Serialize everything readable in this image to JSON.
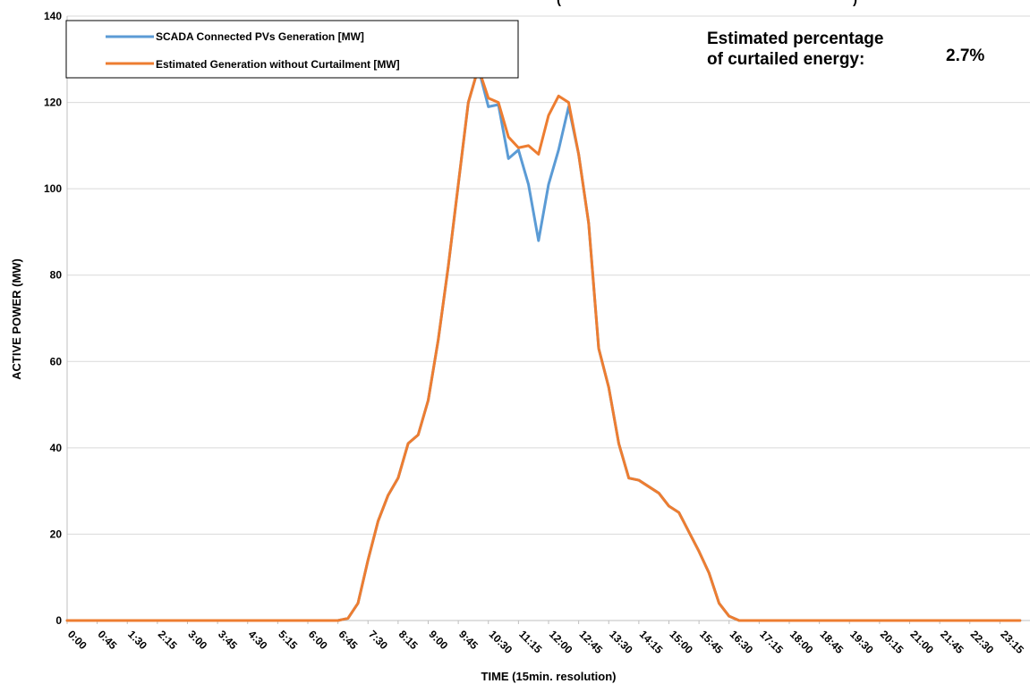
{
  "chart_data": {
    "type": "line",
    "title_visible_fragment": "(",
    "title_visible_fragment_right": ")",
    "xlabel": "TIME (15min. resolution)",
    "ylabel": "ACTIVE POWER (MW)",
    "ylim": [
      0,
      140
    ],
    "yticks": [
      0,
      20,
      40,
      60,
      80,
      100,
      120,
      140
    ],
    "xtick_labels": [
      "0:00",
      "0:45",
      "1:30",
      "2:15",
      "3:00",
      "3:45",
      "4:30",
      "5:15",
      "6:00",
      "6:45",
      "7:30",
      "8:15",
      "9:00",
      "9:45",
      "10:30",
      "11:15",
      "12:00",
      "12:45",
      "13:30",
      "14:15",
      "15:00",
      "15:45",
      "16:30",
      "17:15",
      "18:00",
      "18:45",
      "19:30",
      "20:15",
      "21:00",
      "21:45",
      "22:30",
      "23:15"
    ],
    "grid": "horizontal",
    "legend_placement": "top-left",
    "x": [
      "0:00",
      "0:15",
      "0:30",
      "0:45",
      "1:00",
      "1:15",
      "1:30",
      "1:45",
      "2:00",
      "2:15",
      "2:30",
      "2:45",
      "3:00",
      "3:15",
      "3:30",
      "3:45",
      "4:00",
      "4:15",
      "4:30",
      "4:45",
      "5:00",
      "5:15",
      "5:30",
      "5:45",
      "6:00",
      "6:15",
      "6:30",
      "6:45",
      "7:00",
      "7:15",
      "7:30",
      "7:45",
      "8:00",
      "8:15",
      "8:30",
      "8:45",
      "9:00",
      "9:15",
      "9:30",
      "9:45",
      "10:00",
      "10:15",
      "10:30",
      "10:45",
      "11:00",
      "11:15",
      "11:30",
      "11:45",
      "12:00",
      "12:15",
      "12:30",
      "12:45",
      "13:00",
      "13:15",
      "13:30",
      "13:45",
      "14:00",
      "14:15",
      "14:30",
      "14:45",
      "15:00",
      "15:15",
      "15:30",
      "15:45",
      "16:00",
      "16:15",
      "16:30",
      "16:45",
      "17:00",
      "17:15",
      "17:30",
      "17:45",
      "18:00",
      "18:15",
      "18:30",
      "18:45",
      "19:00",
      "19:15",
      "19:30",
      "19:45",
      "20:00",
      "20:15",
      "20:30",
      "20:45",
      "21:00",
      "21:15",
      "21:30",
      "21:45",
      "22:00",
      "22:15",
      "22:30",
      "22:45",
      "23:00",
      "23:15",
      "23:30",
      "23:45"
    ],
    "series": [
      {
        "name": "SCADA Connected PVs Generation [MW]",
        "color": "#5B9BD5",
        "values": [
          0,
          0,
          0,
          0,
          0,
          0,
          0,
          0,
          0,
          0,
          0,
          0,
          0,
          0,
          0,
          0,
          0,
          0,
          0,
          0,
          0,
          0,
          0,
          0,
          0,
          0,
          0,
          0,
          0.5,
          4,
          14,
          23,
          29,
          33,
          41,
          43,
          51,
          65,
          82,
          101,
          120,
          128,
          119,
          119.5,
          107,
          109,
          101,
          88,
          101,
          109,
          119,
          108,
          92,
          63,
          54,
          41,
          33,
          32.5,
          31,
          29.5,
          26.5,
          25,
          20.5,
          16,
          11,
          4,
          1,
          0,
          0,
          0,
          0,
          0,
          0,
          0,
          0,
          0,
          0,
          0,
          0,
          0,
          0,
          0,
          0,
          0,
          0,
          0,
          0,
          0,
          0,
          0,
          0,
          0,
          0,
          0,
          0,
          0
        ]
      },
      {
        "name": "Estimated Generation without Curtailment [MW]",
        "color": "#ED7D31",
        "values": [
          0,
          0,
          0,
          0,
          0,
          0,
          0,
          0,
          0,
          0,
          0,
          0,
          0,
          0,
          0,
          0,
          0,
          0,
          0,
          0,
          0,
          0,
          0,
          0,
          0,
          0,
          0,
          0,
          0.5,
          4,
          14,
          23,
          29,
          33,
          41,
          43,
          51,
          65,
          82,
          101,
          120,
          128,
          121,
          120,
          112,
          109.5,
          110,
          108,
          117,
          121.5,
          120,
          108,
          92,
          63,
          54,
          41,
          33,
          32.5,
          31,
          29.5,
          26.5,
          25,
          20.5,
          16,
          11,
          4,
          1,
          0,
          0,
          0,
          0,
          0,
          0,
          0,
          0,
          0,
          0,
          0,
          0,
          0,
          0,
          0,
          0,
          0,
          0,
          0,
          0,
          0,
          0,
          0,
          0,
          0,
          0,
          0,
          0,
          0
        ]
      }
    ]
  },
  "annotation": {
    "label_line1": "Estimated percentage",
    "label_line2": "of curtailed energy:",
    "value": "2.7%"
  }
}
